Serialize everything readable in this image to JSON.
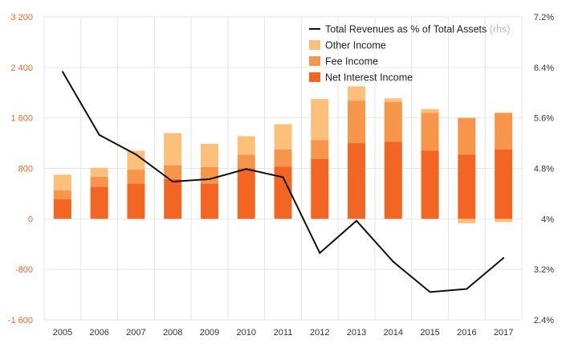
{
  "chart_data": {
    "type": "bar",
    "stacked": true,
    "categories": [
      "2005",
      "2006",
      "2007",
      "2008",
      "2009",
      "2010",
      "2011",
      "2012",
      "2013",
      "2014",
      "2015",
      "2016",
      "2017"
    ],
    "series": [
      {
        "name": "Net Interest Income",
        "type": "bar",
        "axis": "left",
        "color": "#f26522",
        "values": [
          310,
          510,
          560,
          630,
          560,
          800,
          830,
          950,
          1200,
          1220,
          1080,
          1020,
          1100
        ]
      },
      {
        "name": "Fee Income",
        "type": "bar",
        "axis": "left",
        "color": "#f7954a",
        "values": [
          140,
          160,
          220,
          220,
          260,
          220,
          270,
          300,
          670,
          630,
          600,
          580,
          580
        ]
      },
      {
        "name": "Other Income",
        "type": "bar",
        "axis": "left",
        "color": "#fcc07a",
        "values": [
          250,
          140,
          300,
          510,
          370,
          290,
          400,
          650,
          230,
          60,
          60,
          -70,
          -50
        ]
      },
      {
        "name": "Total Revenues as % of Total Assets",
        "type": "line",
        "axis": "right",
        "color": "#111111",
        "values": [
          6.33,
          5.33,
          5.02,
          4.59,
          4.63,
          4.79,
          4.66,
          3.46,
          3.97,
          3.32,
          2.84,
          2.89,
          3.38
        ]
      }
    ],
    "ylim": [
      -1600,
      3200
    ],
    "yticks": [
      "3 200",
      "2 400",
      "1 600",
      "800",
      "0",
      "-800",
      "-1 600"
    ],
    "y2lim": [
      2.4,
      7.2
    ],
    "y2ticks": [
      "7.2%",
      "6.4%",
      "5.6%",
      "4.8%",
      "4%",
      "3.2%",
      "2.4%"
    ],
    "legend": {
      "position": "top-right",
      "items": [
        {
          "label": "Total Revenues as % of Total Assets",
          "note": "(rhs)",
          "kind": "line",
          "color": "#111111"
        },
        {
          "label": "Other Income",
          "kind": "bar",
          "color": "#fcc07a"
        },
        {
          "label": "Fee Income",
          "kind": "bar",
          "color": "#f7954a"
        },
        {
          "label": "Net Interest Income",
          "kind": "bar",
          "color": "#f26522"
        }
      ]
    },
    "grid": true
  }
}
